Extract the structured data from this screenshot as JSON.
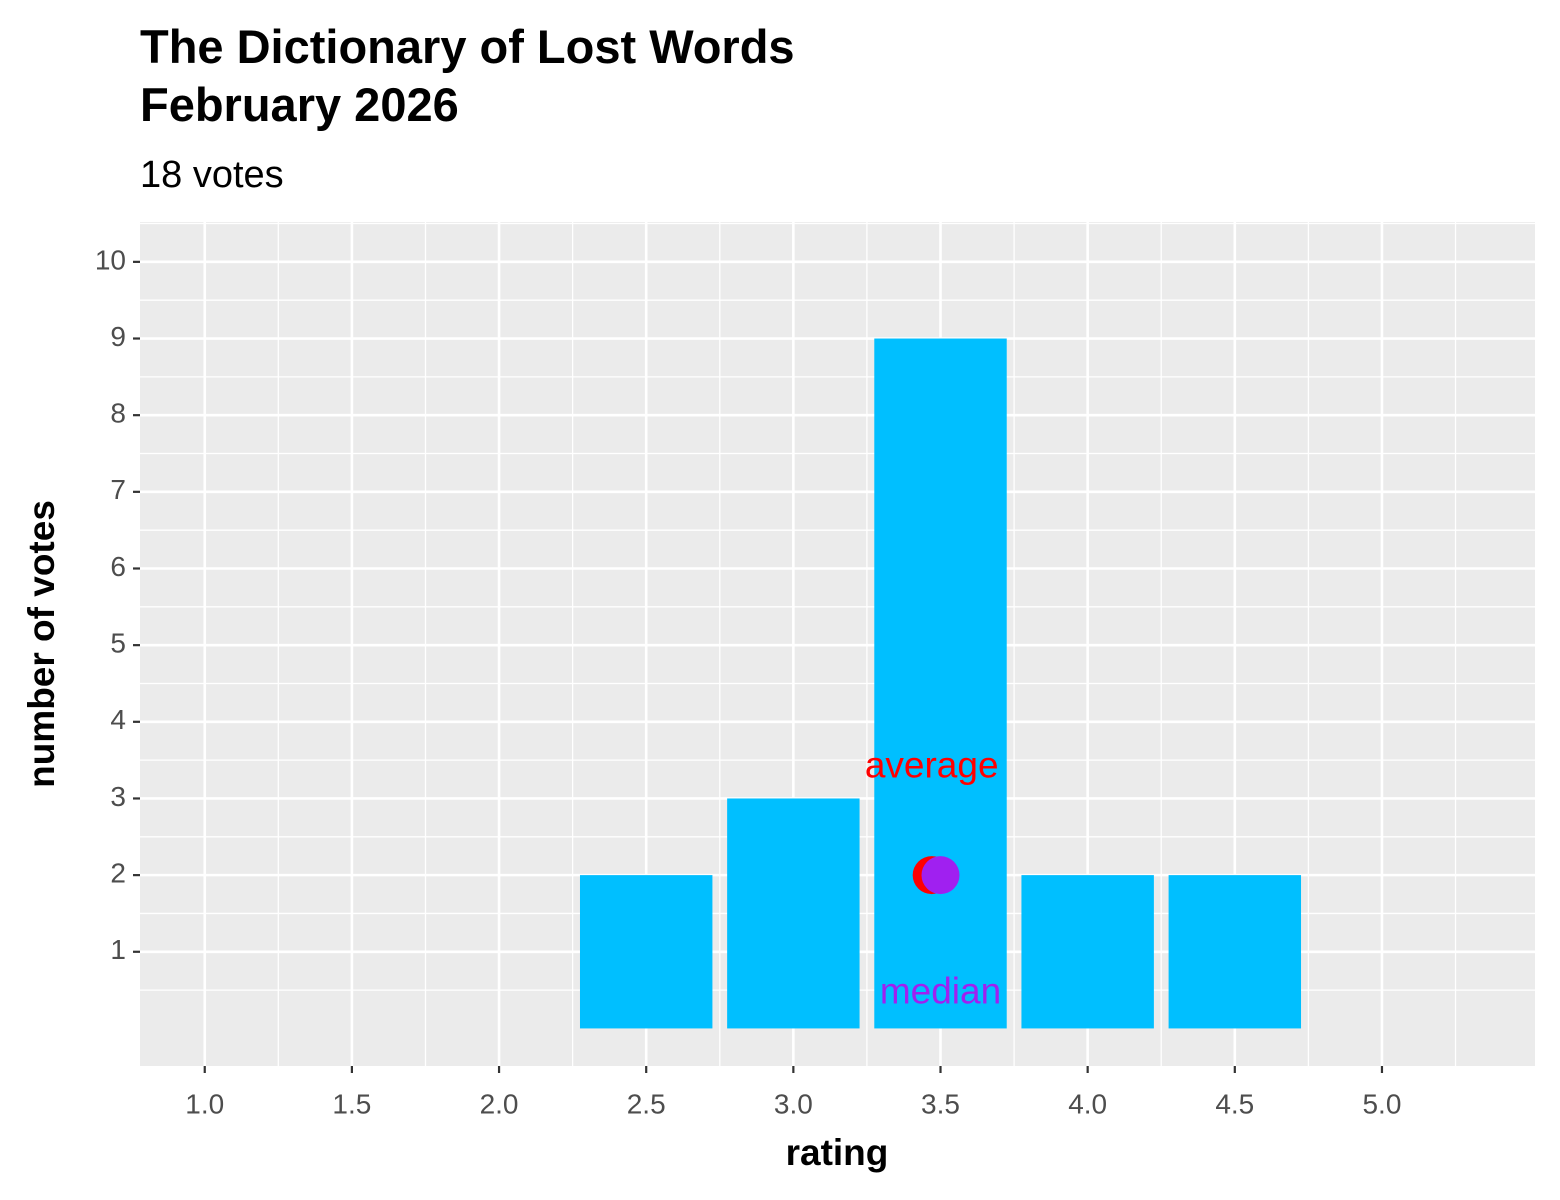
{
  "chart_data": {
    "type": "bar",
    "title": "The Dictionary of Lost Words\nFebruary 2026",
    "subtitle": "18 votes",
    "x_label": "rating",
    "y_label": "number of votes",
    "x": [
      2.5,
      3.0,
      3.5,
      4.0,
      4.5
    ],
    "values": [
      2,
      3,
      9,
      2,
      2
    ],
    "color": "#00bfff",
    "bar_width": 0.45,
    "xlim": [
      0.78,
      5.52
    ],
    "ylim": [
      -0.49,
      10.52
    ],
    "xticks": [
      {
        "value": 1.0,
        "label": "1.0"
      },
      1.5,
      {
        "value": 2.0,
        "label": "2.0"
      },
      2.5,
      {
        "value": 3.0,
        "label": "3.0"
      },
      3.5,
      {
        "value": 4.0,
        "label": "4.0"
      },
      4.5,
      {
        "value": 5.0,
        "label": "5.0"
      }
    ],
    "yticks": [
      1,
      2,
      3,
      4,
      5,
      6,
      7,
      8,
      9,
      10
    ],
    "grid": true,
    "points": [
      {
        "x": 3.47,
        "y": 2,
        "color": "#ff0000"
      },
      {
        "x": 3.5,
        "y": 2,
        "color": "#a020f0"
      }
    ],
    "annotations": [
      {
        "text": "average",
        "x": 3.47,
        "y": 3.4,
        "color": "#ff0000"
      },
      {
        "text": "median",
        "x": 3.5,
        "y": 0.45,
        "color": "#a020f0"
      }
    ]
  }
}
